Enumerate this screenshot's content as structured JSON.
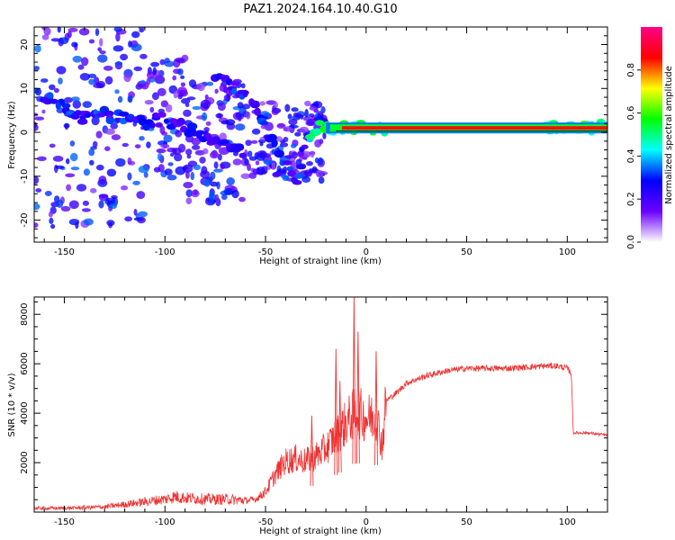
{
  "figure_title": "PAZ1.2024.164.10.40.G10",
  "chart_data": [
    {
      "type": "heatmap",
      "title": "PAZ1.2024.164.10.40.G10",
      "xlabel": "Height of straight line (km)",
      "ylabel": "Frequency (Hz)",
      "xlim": [
        -165,
        120
      ],
      "ylim": [
        -25,
        24
      ],
      "xticks": [
        -150,
        -100,
        -50,
        0,
        50,
        100
      ],
      "yticks": [
        -20,
        -10,
        0,
        10,
        20
      ],
      "colorbar": {
        "label": "Normalized spectral amplitude",
        "range": [
          0,
          1
        ],
        "ticks": [
          0.0,
          0.2,
          0.4,
          0.6,
          0.8
        ],
        "colormap": [
          "#ffffff",
          "#6a00ff",
          "#0000ff",
          "#00ffff",
          "#00ff00",
          "#ffff00",
          "#ff0000",
          "#ff0088"
        ]
      },
      "ridge": [
        {
          "x": -160,
          "y": 8
        },
        {
          "x": -150,
          "y": 6
        },
        {
          "x": -140,
          "y": 3
        },
        {
          "x": -130,
          "y": 4
        },
        {
          "x": -120,
          "y": 3
        },
        {
          "x": -110,
          "y": 2
        },
        {
          "x": -100,
          "y": 3
        },
        {
          "x": -90,
          "y": 1
        },
        {
          "x": -80,
          "y": -1
        },
        {
          "x": -70,
          "y": -3
        },
        {
          "x": -60,
          "y": -5
        },
        {
          "x": -75,
          "y": 13
        },
        {
          "x": -65,
          "y": 10
        },
        {
          "x": -55,
          "y": 7
        },
        {
          "x": -50,
          "y": 1
        },
        {
          "x": -45,
          "y": -3
        },
        {
          "x": -40,
          "y": -7
        },
        {
          "x": -35,
          "y": -11
        },
        {
          "x": -30,
          "y": -3
        },
        {
          "x": -25,
          "y": 1
        },
        {
          "x": -15,
          "y": 1
        },
        {
          "x": 0,
          "y": 1
        },
        {
          "x": 10,
          "y": 1
        },
        {
          "x": 50,
          "y": 1
        },
        {
          "x": 90,
          "y": 1.5
        },
        {
          "x": 120,
          "y": 1
        }
      ]
    },
    {
      "type": "line",
      "xlabel": "Height of straight line (km)",
      "ylabel": "SNR (10 * v/v)",
      "xlim": [
        -165,
        120
      ],
      "ylim": [
        0,
        8700
      ],
      "xticks": [
        -150,
        -100,
        -50,
        0,
        50,
        100
      ],
      "yticks": [
        2000,
        4000,
        6000,
        8000
      ],
      "color": "#ee3333",
      "series": [
        {
          "x": [
            -165,
            -150,
            -130,
            -120,
            -110,
            -100,
            -95,
            -90,
            -80,
            -70,
            -60,
            -55,
            -50,
            -45,
            -40,
            -35,
            -30,
            -25,
            -20,
            -15,
            -10,
            -5,
            0,
            5,
            8,
            10,
            15,
            20,
            30,
            40,
            50,
            60,
            70,
            80,
            90,
            95,
            100,
            102,
            103,
            110,
            120
          ],
          "y": [
            150,
            150,
            200,
            300,
            400,
            500,
            600,
            550,
            500,
            500,
            450,
            500,
            800,
            1500,
            2000,
            2100,
            2000,
            2200,
            2500,
            3000,
            3500,
            4000,
            3700,
            3800,
            2600,
            4500,
            4800,
            5200,
            5500,
            5700,
            5800,
            5800,
            5800,
            5850,
            5900,
            5900,
            5800,
            5600,
            3200,
            3200,
            3100
          ]
        }
      ],
      "spikes": [
        {
          "x": -27,
          "y": 3900
        },
        {
          "x": -15,
          "y": 6600
        },
        {
          "x": -13,
          "y": 5300
        },
        {
          "x": -6,
          "y": 8700
        },
        {
          "x": -4,
          "y": 7300
        },
        {
          "x": 5,
          "y": 6500
        }
      ]
    }
  ]
}
